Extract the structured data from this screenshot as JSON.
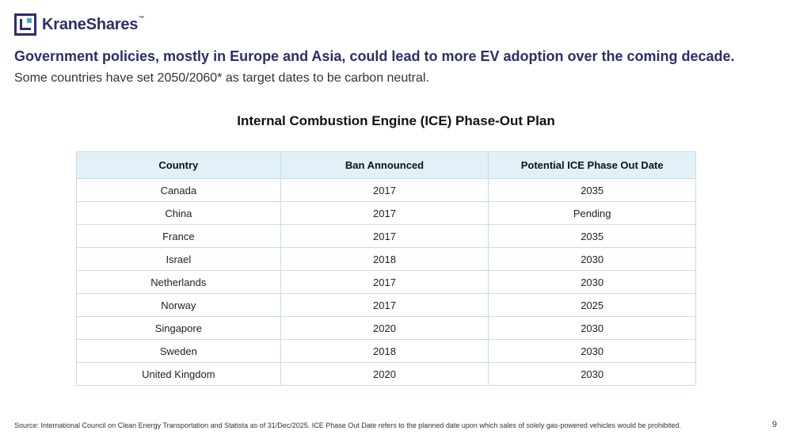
{
  "logo": {
    "brand": "KraneShares",
    "trademark": "™"
  },
  "headline": "Government policies, mostly in Europe and Asia, could lead to more EV adoption over the coming decade.",
  "subline": "Some countries have set 2050/2060* as target dates to be carbon neutral.",
  "table": {
    "title": "Internal Combustion Engine (ICE) Phase-Out Plan",
    "headers": [
      "Country",
      "Ban Announced",
      "Potential ICE Phase Out Date"
    ],
    "rows": [
      [
        "Canada",
        "2017",
        "2035"
      ],
      [
        "China",
        "2017",
        "Pending"
      ],
      [
        "France",
        "2017",
        "2035"
      ],
      [
        "Israel",
        "2018",
        "2030"
      ],
      [
        "Netherlands",
        "2017",
        "2030"
      ],
      [
        "Norway",
        "2017",
        "2025"
      ],
      [
        "Singapore",
        "2020",
        "2030"
      ],
      [
        "Sweden",
        "2018",
        "2030"
      ],
      [
        "United Kingdom",
        "2020",
        "2030"
      ]
    ]
  },
  "footnote": "Source: International Council on Clean Energy Transportation and Statista as of 31/Dec/2025. ICE Phase Out Date refers to the planned date upon which sales of solely gas-powered vehicles would be prohibited.",
  "page_number": "9",
  "colors": {
    "brand_navy": "#2a2f6b",
    "header_fill": "#e2f0f8",
    "grid": "#c5dcec"
  }
}
